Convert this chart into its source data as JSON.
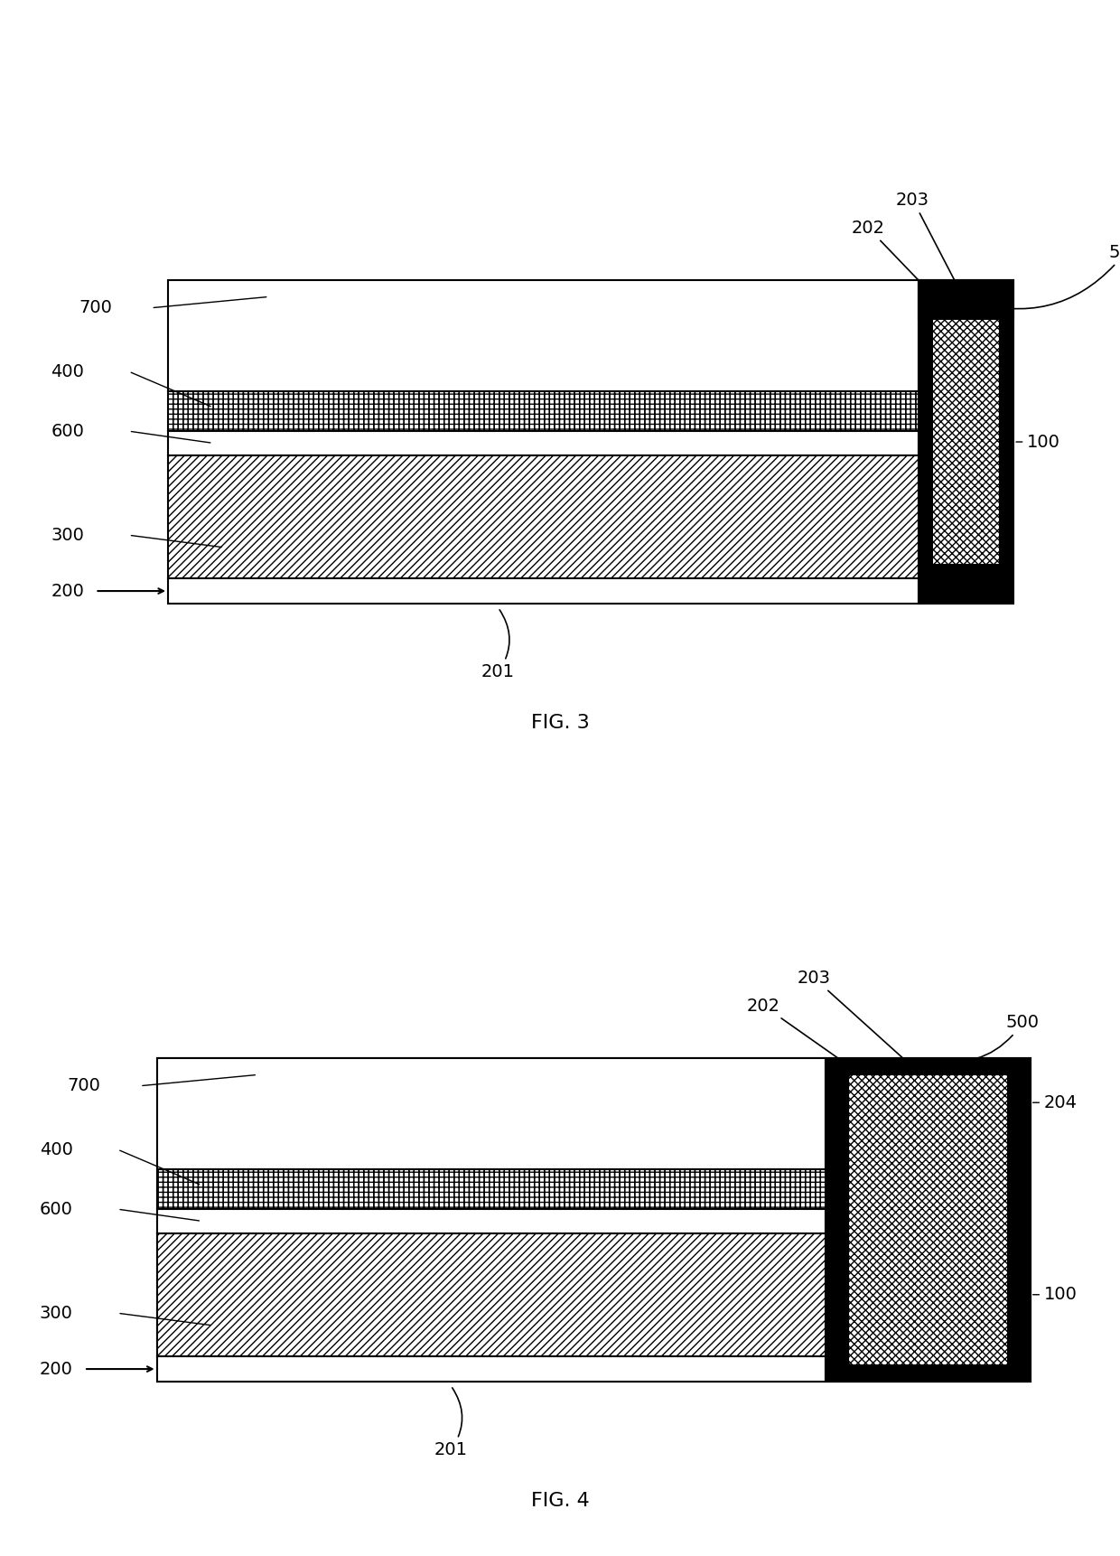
{
  "fig3_title": "FIG. 3",
  "fig4_title": "FIG. 4",
  "background": "#ffffff",
  "lc": "#000000",
  "lw": 1.5,
  "fs": 14,
  "fs_title": 16
}
